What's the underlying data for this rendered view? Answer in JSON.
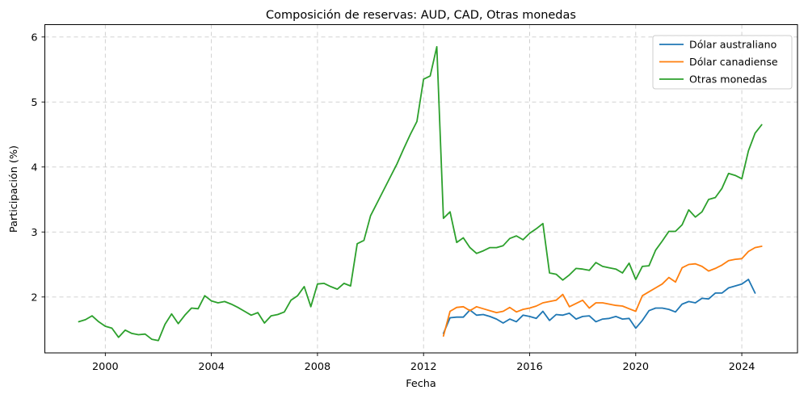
{
  "chart_data": {
    "type": "line",
    "title": "Composición de reservas: AUD, CAD, Otras monedas",
    "xlabel": "Fecha",
    "ylabel": "Participación (%)",
    "x_ticks": [
      2000,
      2004,
      2008,
      2012,
      2016,
      2020,
      2024
    ],
    "x_tick_labels": [
      "2000",
      "2004",
      "2008",
      "2012",
      "2016",
      "2020",
      "2024"
    ],
    "y_ticks": [
      2,
      3,
      4,
      5,
      6
    ],
    "y_tick_labels": [
      "2",
      "3",
      "4",
      "5",
      "6"
    ],
    "xlim": [
      1997.72,
      2026.1
    ],
    "ylim": [
      1.14,
      6.19
    ],
    "grid": true,
    "legend_position": "upper right",
    "series": [
      {
        "name": "Dólar australiano",
        "color": "#1f77b4",
        "x_start": 2012.75,
        "x_step": 0.25,
        "values": [
          1.44,
          1.68,
          1.69,
          1.69,
          1.8,
          1.72,
          1.73,
          1.7,
          1.66,
          1.6,
          1.66,
          1.62,
          1.72,
          1.7,
          1.67,
          1.78,
          1.64,
          1.73,
          1.72,
          1.75,
          1.66,
          1.7,
          1.71,
          1.62,
          1.66,
          1.67,
          1.7,
          1.66,
          1.67,
          1.52,
          1.64,
          1.79,
          1.83,
          1.83,
          1.81,
          1.77,
          1.89,
          1.93,
          1.91,
          1.98,
          1.97,
          2.06,
          2.06,
          2.14,
          2.17,
          2.2,
          2.27,
          2.06
        ]
      },
      {
        "name": "Dólar canadiense",
        "color": "#ff7f0e",
        "x_start": 2012.75,
        "x_step": 0.25,
        "values": [
          1.4,
          1.78,
          1.84,
          1.85,
          1.79,
          1.85,
          1.82,
          1.79,
          1.76,
          1.78,
          1.84,
          1.77,
          1.81,
          1.83,
          1.86,
          1.91,
          1.93,
          1.95,
          2.04,
          1.85,
          1.9,
          1.95,
          1.83,
          1.91,
          1.91,
          1.89,
          1.87,
          1.86,
          1.82,
          1.78,
          2.02,
          2.08,
          2.14,
          2.2,
          2.3,
          2.23,
          2.45,
          2.5,
          2.51,
          2.47,
          2.4,
          2.44,
          2.49,
          2.56,
          2.58,
          2.59,
          2.7,
          2.76,
          2.78
        ]
      },
      {
        "name": "Otras monedas",
        "color": "#2ca02c",
        "x_start": 1999.0,
        "x_step": 0.25,
        "values": [
          1.62,
          1.65,
          1.71,
          1.62,
          1.55,
          1.52,
          1.38,
          1.49,
          1.44,
          1.42,
          1.43,
          1.35,
          1.33,
          1.58,
          1.74,
          1.59,
          1.72,
          1.83,
          1.82,
          2.02,
          1.94,
          1.91,
          1.93,
          1.89,
          1.84,
          1.78,
          1.72,
          1.76,
          1.6,
          1.71,
          1.73,
          1.77,
          1.95,
          2.02,
          2.16,
          1.85,
          2.2,
          2.21,
          2.16,
          2.12,
          2.21,
          2.17,
          2.82,
          2.87,
          3.25,
          3.45,
          3.65,
          3.85,
          4.05,
          4.28,
          4.5,
          4.7,
          5.35,
          5.4,
          5.85,
          3.21,
          3.31,
          2.84,
          2.91,
          2.76,
          2.67,
          2.71,
          2.76,
          2.76,
          2.79,
          2.9,
          2.94,
          2.88,
          2.98,
          3.05,
          3.13,
          2.37,
          2.35,
          2.26,
          2.34,
          2.44,
          2.43,
          2.41,
          2.53,
          2.47,
          2.45,
          2.43,
          2.37,
          2.52,
          2.27,
          2.47,
          2.48,
          2.72,
          2.86,
          3.01,
          3.01,
          3.11,
          3.34,
          3.23,
          3.31,
          3.5,
          3.53,
          3.67,
          3.9,
          3.87,
          3.82,
          4.25,
          4.52,
          4.65
        ]
      }
    ]
  }
}
